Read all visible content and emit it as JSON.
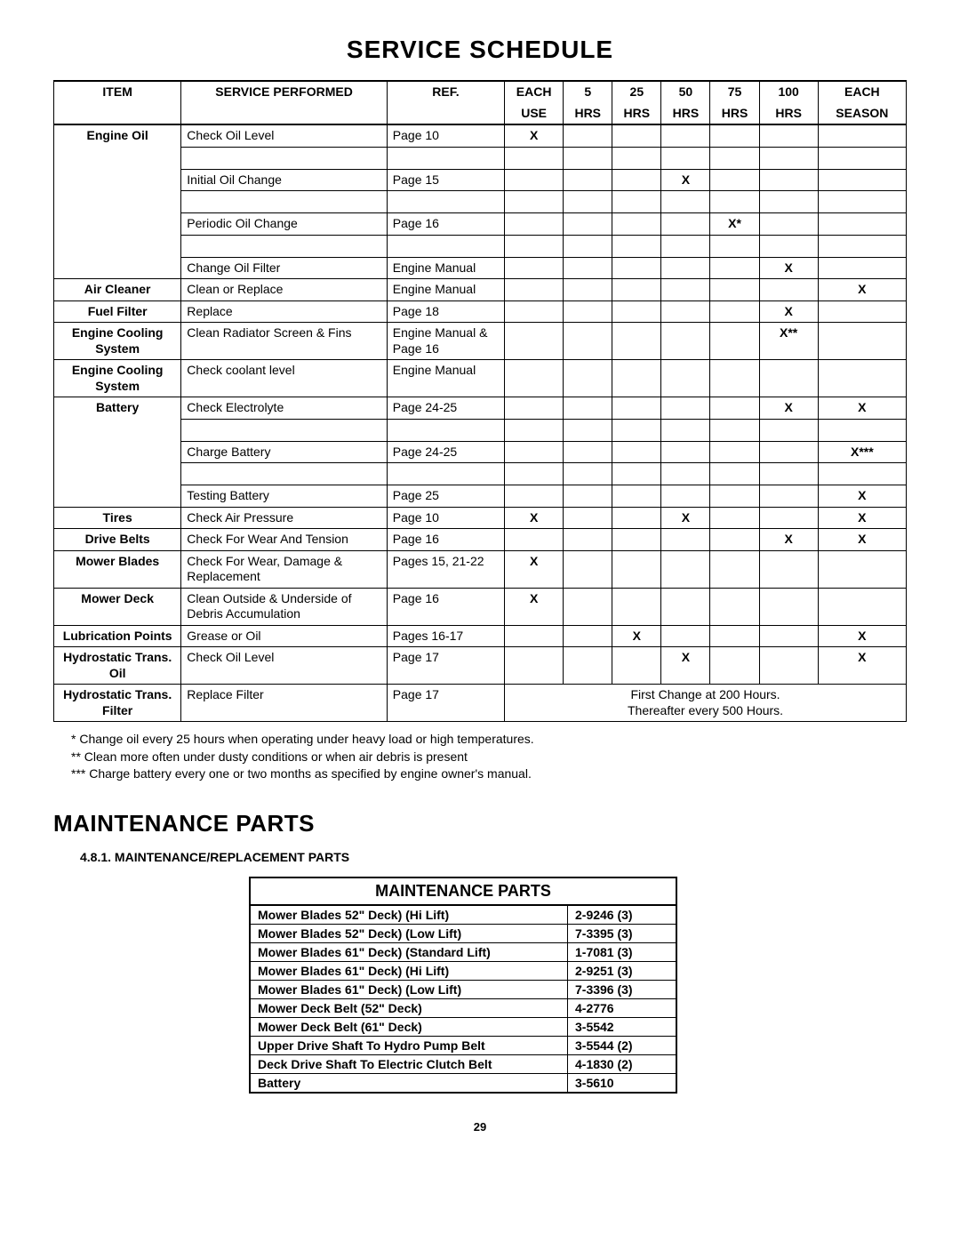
{
  "page": {
    "number": "29"
  },
  "title": "SERVICE SCHEDULE",
  "schedule": {
    "headers": {
      "item": "ITEM",
      "service": "SERVICE PERFORMED",
      "ref": "REF.",
      "each_use_top": "EACH",
      "each_use_bot": "USE",
      "h5_top": "5",
      "h5_bot": "HRS",
      "h25_top": "25",
      "h25_bot": "HRS",
      "h50_top": "50",
      "h50_bot": "HRS",
      "h75_top": "75",
      "h75_bot": "HRS",
      "h100_top": "100",
      "h100_bot": "HRS",
      "season_top": "EACH",
      "season_bot": "SEASON"
    },
    "groups": [
      {
        "item": "Engine Oil",
        "rows": [
          {
            "service": "Check Oil Level",
            "ref": "Page 10",
            "use": "X",
            "h5": "",
            "h25": "",
            "h50": "",
            "h75": "",
            "h100": "",
            "season": ""
          },
          {
            "service": "Initial Oil Change",
            "ref": "Page 15",
            "use": "",
            "h5": "",
            "h25": "",
            "h50": "X",
            "h75": "",
            "h100": "",
            "season": ""
          },
          {
            "service": "Periodic Oil Change",
            "ref": "Page 16",
            "use": "",
            "h5": "",
            "h25": "",
            "h50": "",
            "h75": "X*",
            "h100": "",
            "season": ""
          },
          {
            "service": "Change Oil Filter",
            "ref": "Engine Manual",
            "use": "",
            "h5": "",
            "h25": "",
            "h50": "",
            "h75": "",
            "h100": "X",
            "season": ""
          }
        ]
      },
      {
        "item": "Air Cleaner",
        "rows": [
          {
            "service": "Clean or Replace",
            "ref": "Engine Manual",
            "use": "",
            "h5": "",
            "h25": "",
            "h50": "",
            "h75": "",
            "h100": "",
            "season": "X"
          }
        ]
      },
      {
        "item": "Fuel Filter",
        "rows": [
          {
            "service": "Replace",
            "ref": "Page 18",
            "use": "",
            "h5": "",
            "h25": "",
            "h50": "",
            "h75": "",
            "h100": "X",
            "season": ""
          }
        ]
      },
      {
        "item": "Engine Cooling System",
        "rows": [
          {
            "service": "Clean Radiator Screen & Fins",
            "ref": "Engine Manual & Page 16",
            "use": "",
            "h5": "",
            "h25": "",
            "h50": "",
            "h75": "",
            "h100": "X**",
            "season": ""
          }
        ]
      },
      {
        "item": "Engine Cooling System",
        "rows": [
          {
            "service": "Check  coolant level",
            "ref": "Engine Manual",
            "use": "",
            "h5": "",
            "h25": "",
            "h50": "",
            "h75": "",
            "h100": "",
            "season": ""
          }
        ]
      },
      {
        "item": "Battery",
        "rows": [
          {
            "service": "Check Electrolyte",
            "ref": "Page 24-25",
            "use": "",
            "h5": "",
            "h25": "",
            "h50": "",
            "h75": "",
            "h100": "X",
            "season": "X"
          },
          {
            "service": "Charge Battery",
            "ref": "Page 24-25",
            "use": "",
            "h5": "",
            "h25": "",
            "h50": "",
            "h75": "",
            "h100": "",
            "season": "X***"
          },
          {
            "service": "Testing Battery",
            "ref": "Page 25",
            "use": "",
            "h5": "",
            "h25": "",
            "h50": "",
            "h75": "",
            "h100": "",
            "season": "X"
          }
        ]
      },
      {
        "item": "Tires",
        "rows": [
          {
            "service": "Check Air Pressure",
            "ref": "Page 10",
            "use": "X",
            "h5": "",
            "h25": "",
            "h50": "X",
            "h75": "",
            "h100": "",
            "season": "X"
          }
        ]
      },
      {
        "item": "Drive Belts",
        "rows": [
          {
            "service": "Check For Wear And Tension",
            "ref": "Page 16",
            "use": "",
            "h5": "",
            "h25": "",
            "h50": "",
            "h75": "",
            "h100": "X",
            "season": "X"
          }
        ]
      },
      {
        "item": "Mower Blades",
        "rows": [
          {
            "service": "Check For Wear, Damage & Replacement",
            "ref": "Pages 15, 21-22",
            "use": "X",
            "h5": "",
            "h25": "",
            "h50": "",
            "h75": "",
            "h100": "",
            "season": ""
          }
        ]
      },
      {
        "item": "Mower Deck",
        "rows": [
          {
            "service": "Clean Outside & Underside of Debris Accumulation",
            "ref": "Page 16",
            "use": "X",
            "h5": "",
            "h25": "",
            "h50": "",
            "h75": "",
            "h100": "",
            "season": ""
          }
        ]
      },
      {
        "item": "Lubrication Points",
        "rows": [
          {
            "service": "Grease or Oil",
            "ref": "Pages 16-17",
            "use": "",
            "h5": "",
            "h25": "X",
            "h50": "",
            "h75": "",
            "h100": "",
            "season": "X"
          }
        ]
      },
      {
        "item": "Hydrostatic Trans. Oil",
        "rows": [
          {
            "service": "Check Oil Level",
            "ref": "Page 17",
            "use": "",
            "h5": "",
            "h25": "",
            "h50": "X",
            "h75": "",
            "h100": "",
            "season": "X"
          }
        ]
      },
      {
        "item": "Hydrostatic Trans. Filter",
        "rows": [
          {
            "service": "Replace Filter",
            "ref": "Page 17",
            "note": "First Change at 200 Hours.\nThereafter every 500 Hours."
          }
        ]
      }
    ],
    "footnotes": [
      "* Change oil every 25 hours when operating under heavy load or high temperatures.",
      "** Clean more often under dusty conditions or when air debris is present",
      "*** Charge battery every one or two months as specified by engine owner's manual."
    ]
  },
  "maintenance": {
    "heading": "MAINTENANCE PARTS",
    "subheading": "4.8.1.  MAINTENANCE/REPLACEMENT PARTS",
    "table_title": "MAINTENANCE PARTS",
    "rows": [
      {
        "name": "Mower Blades 52\" Deck) (Hi Lift)",
        "num": "2-9246 (3)"
      },
      {
        "name": "Mower Blades 52\" Deck) (Low Lift)",
        "num": "7-3395 (3)"
      },
      {
        "name": "Mower Blades 61\" Deck) (Standard Lift)",
        "num": "1-7081 (3)"
      },
      {
        "name": "Mower Blades 61\" Deck) (Hi Lift)",
        "num": "2-9251 (3)"
      },
      {
        "name": "Mower Blades 61\" Deck) (Low Lift)",
        "num": "7-3396 (3)"
      },
      {
        "name": "Mower Deck Belt (52\" Deck)",
        "num": "4-2776"
      },
      {
        "name": "Mower Deck Belt (61\" Deck)",
        "num": "3-5542"
      },
      {
        "name": "Upper Drive Shaft To Hydro Pump Belt",
        "num": "3-5544 (2)"
      },
      {
        "name": "Deck Drive Shaft To Electric Clutch Belt",
        "num": "4-1830 (2)"
      },
      {
        "name": "Battery",
        "num": "3-5610"
      }
    ]
  }
}
